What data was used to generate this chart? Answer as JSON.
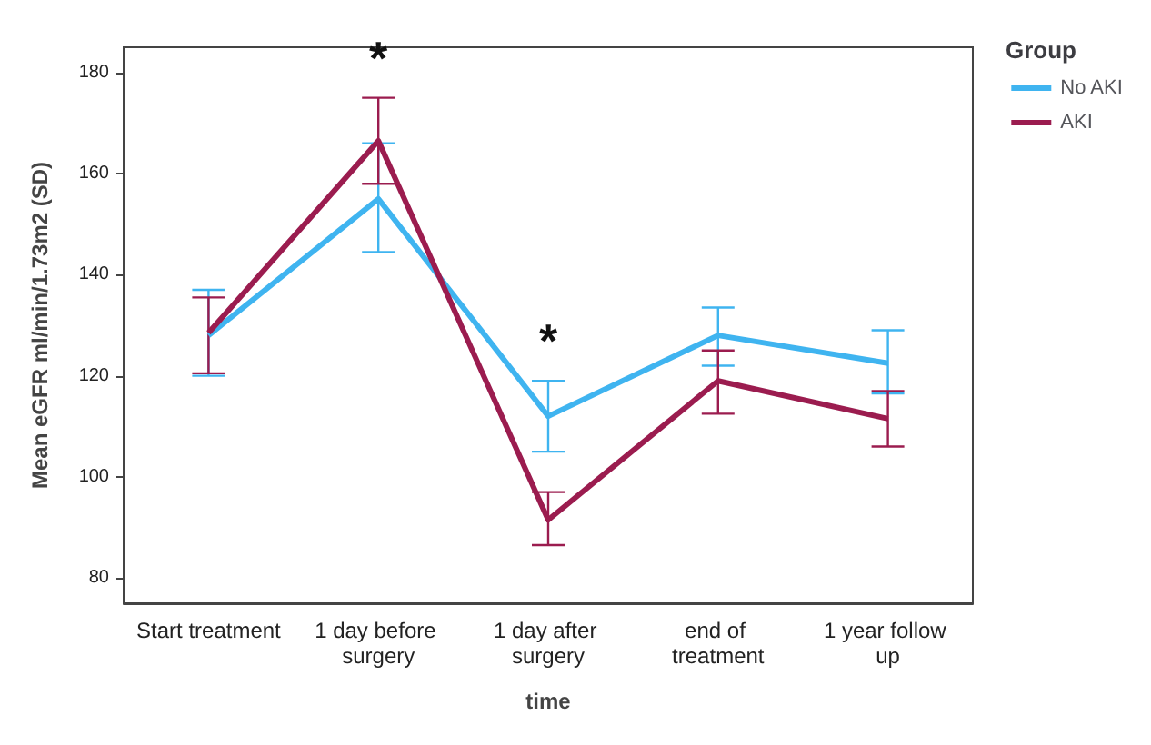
{
  "chart_data": {
    "type": "line",
    "xlabel": "time",
    "ylabel": "Mean eGFR ml/min/1.73m2 (SD)",
    "legend_title": "Group",
    "legend": "top right",
    "grid": false,
    "marker": "none",
    "line_style": "solid",
    "categories": [
      "Start treatment",
      "1 day before surgery",
      "1 day after surgery",
      "end of treatment",
      "1 year follow up"
    ],
    "ylim": [
      75,
      185
    ],
    "yticks": [
      80,
      100,
      120,
      140,
      160,
      180
    ],
    "series": [
      {
        "name": "No AKI",
        "color": "#3fb4f0",
        "values": [
          128,
          155,
          112,
          128,
          122.5
        ],
        "errors": [
          [
            120,
            137
          ],
          [
            144.5,
            166
          ],
          [
            105,
            119
          ],
          [
            122,
            133.5
          ],
          [
            116.5,
            129
          ]
        ]
      },
      {
        "name": "AKI",
        "color": "#9b1c4f",
        "values": [
          128.5,
          166.5,
          91.5,
          119,
          111.5
        ],
        "errors": [
          [
            120.5,
            135.5
          ],
          [
            158,
            175
          ],
          [
            86.5,
            97
          ],
          [
            112.5,
            125
          ],
          [
            106,
            117
          ]
        ]
      }
    ],
    "annotations": [
      "*",
      "*"
    ]
  }
}
